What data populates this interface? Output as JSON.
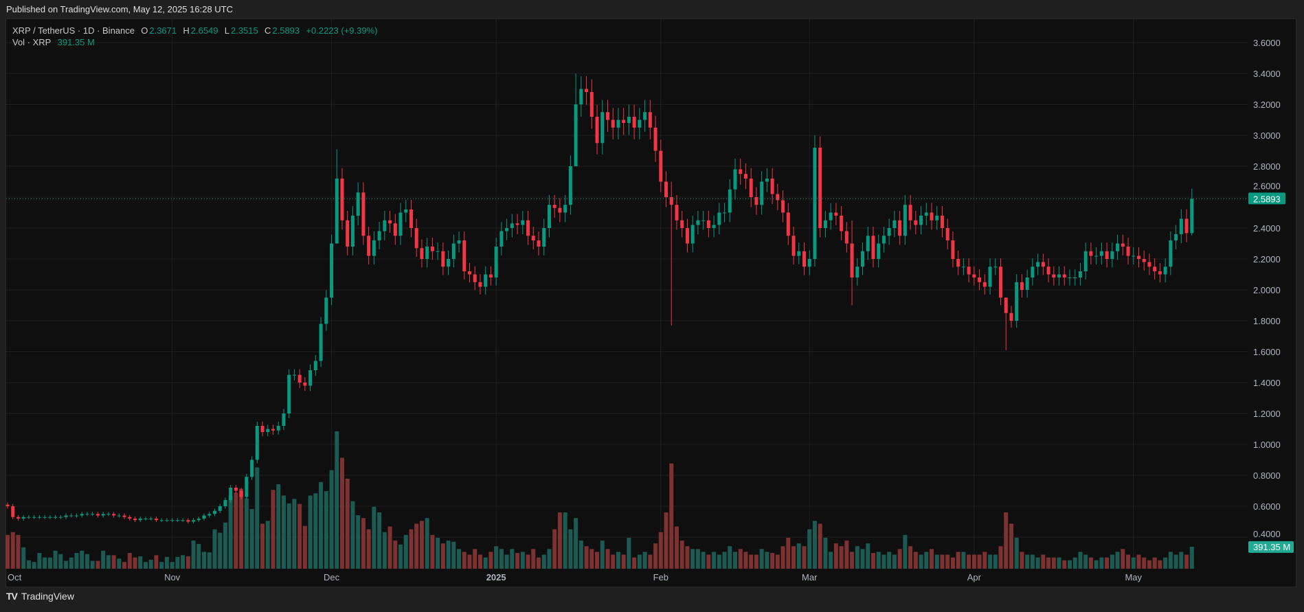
{
  "published": "Published on TradingView.com, May 12, 2025 16:28 UTC",
  "legend": {
    "symbol": "XRP / TetherUS · 1D · Binance",
    "o_label": "O",
    "o": "2.3671",
    "h_label": "H",
    "h": "2.6549",
    "l_label": "L",
    "l": "2.3515",
    "c_label": "C",
    "c": "2.5893",
    "change": "+0.2223 (+9.39%)",
    "vol_label": "Vol · XRP",
    "vol": "391.35 M"
  },
  "footer": {
    "logo": "TradingView"
  },
  "colors": {
    "up": "#089981",
    "down": "#f23645",
    "up_vol": "#1c5b53",
    "down_vol": "#7e3131",
    "bg": "#0f0f0f"
  },
  "chart_data": {
    "type": "candlestick",
    "symbol": "XRP/USDT",
    "interval": "1D",
    "start_date": "2024-10-01",
    "end_date": "2025-05-12",
    "ylim": [
      0.3,
      3.7
    ],
    "y_ticks": [
      "3.6000",
      "3.4000",
      "3.2000",
      "3.0000",
      "2.8000",
      "2.6000",
      "2.4000",
      "2.2000",
      "2.0000",
      "1.8000",
      "1.6000",
      "1.4000",
      "1.2000",
      "1.0000",
      "0.8000",
      "0.6000",
      "0.4000"
    ],
    "x_ticks": [
      {
        "label": "Oct",
        "day": 0
      },
      {
        "label": "Nov",
        "day": 31
      },
      {
        "label": "Dec",
        "day": 61
      },
      {
        "label": "2025",
        "day": 92,
        "bold": true
      },
      {
        "label": "Feb",
        "day": 123
      },
      {
        "label": "Mar",
        "day": 151
      },
      {
        "label": "Apr",
        "day": 182
      },
      {
        "label": "May",
        "day": 212
      }
    ],
    "first_open": 0.61,
    "close": [
      0.6,
      0.53,
      0.52,
      0.53,
      0.53,
      0.53,
      0.53,
      0.53,
      0.53,
      0.53,
      0.53,
      0.54,
      0.54,
      0.54,
      0.55,
      0.55,
      0.55,
      0.54,
      0.55,
      0.55,
      0.54,
      0.54,
      0.53,
      0.52,
      0.51,
      0.52,
      0.52,
      0.52,
      0.51,
      0.51,
      0.51,
      0.51,
      0.51,
      0.51,
      0.5,
      0.51,
      0.52,
      0.54,
      0.55,
      0.57,
      0.6,
      0.64,
      0.72,
      0.7,
      0.66,
      0.79,
      0.9,
      1.12,
      1.08,
      1.1,
      1.09,
      1.12,
      1.2,
      1.45,
      1.45,
      1.4,
      1.38,
      1.48,
      1.54,
      1.78,
      1.95,
      2.3,
      2.72,
      2.45,
      2.28,
      2.48,
      2.63,
      2.35,
      2.22,
      2.32,
      2.38,
      2.45,
      2.43,
      2.35,
      2.5,
      2.52,
      2.4,
      2.27,
      2.2,
      2.28,
      2.25,
      2.25,
      2.15,
      2.2,
      2.3,
      2.32,
      2.12,
      2.1,
      2.05,
      2.02,
      2.1,
      2.08,
      2.28,
      2.38,
      2.4,
      2.43,
      2.42,
      2.45,
      2.35,
      2.32,
      2.28,
      2.4,
      2.55,
      2.53,
      2.5,
      2.55,
      2.8,
      3.2,
      3.3,
      3.28,
      3.12,
      2.95,
      3.15,
      3.1,
      3.05,
      3.1,
      3.08,
      3.12,
      3.05,
      3.1,
      3.15,
      3.05,
      2.9,
      2.7,
      2.6,
      2.55,
      2.45,
      2.4,
      2.3,
      2.42,
      2.45,
      2.45,
      2.4,
      2.42,
      2.5,
      2.5,
      2.65,
      2.78,
      2.75,
      2.72,
      2.6,
      2.55,
      2.7,
      2.72,
      2.62,
      2.58,
      2.5,
      2.35,
      2.22,
      2.25,
      2.15,
      2.2,
      2.92,
      2.4,
      2.45,
      2.5,
      2.48,
      2.38,
      2.3,
      2.08,
      2.15,
      2.25,
      2.35,
      2.2,
      2.3,
      2.35,
      2.4,
      2.45,
      2.35,
      2.55,
      2.45,
      2.42,
      2.48,
      2.5,
      2.45,
      2.48,
      2.4,
      2.32,
      2.2,
      2.15,
      2.15,
      2.1,
      2.08,
      2.05,
      2.02,
      2.15,
      2.15,
      1.95,
      1.85,
      1.8,
      2.05,
      2.0,
      2.08,
      2.15,
      2.18,
      2.15,
      2.1,
      2.08,
      2.1,
      2.08,
      2.08,
      2.08,
      2.12,
      2.25,
      2.22,
      2.22,
      2.25,
      2.2,
      2.25,
      2.3,
      2.28,
      2.22,
      2.22,
      2.2,
      2.18,
      2.15,
      2.12,
      2.1,
      2.15,
      2.32,
      2.36,
      2.46,
      2.3671,
      2.5893
    ],
    "wick_overrides": {
      "62": [
        2.91,
        2.3
      ],
      "107": [
        3.4,
        3.15
      ],
      "125": [
        2.7,
        1.77
      ],
      "152": [
        3.0,
        2.15
      ],
      "188": [
        1.95,
        1.61
      ],
      "159": [
        2.45,
        1.9
      ],
      "223": [
        2.6549,
        2.3515
      ]
    },
    "volume_millions": [
      600,
      650,
      600,
      380,
      150,
      120,
      280,
      200,
      200,
      320,
      260,
      140,
      200,
      280,
      320,
      260,
      140,
      140,
      320,
      240,
      240,
      180,
      120,
      280,
      200,
      220,
      120,
      160,
      240,
      120,
      210,
      120,
      210,
      240,
      220,
      500,
      440,
      300,
      290,
      700,
      640,
      820,
      1300,
      1350,
      1420,
      1250,
      1060,
      1800,
      800,
      850,
      1400,
      1500,
      1300,
      1160,
      1240,
      1150,
      760,
      1300,
      1340,
      1540,
      1380,
      1750,
      2440,
      1970,
      1600,
      1200,
      950,
      900,
      700,
      1100,
      1000,
      650,
      750,
      500,
      430,
      600,
      700,
      800,
      850,
      900,
      600,
      550,
      450,
      500,
      480,
      350,
      300,
      250,
      350,
      250,
      200,
      300,
      400,
      350,
      250,
      350,
      280,
      300,
      250,
      350,
      200,
      250,
      350,
      700,
      1000,
      1000,
      700,
      900,
      500,
      400,
      350,
      300,
      500,
      350,
      250,
      300,
      250,
      550,
      200,
      250,
      300,
      250,
      450,
      650,
      1000,
      1870,
      750,
      500,
      400,
      350,
      350,
      300,
      250,
      300,
      250,
      300,
      400,
      300,
      350,
      300,
      250,
      250,
      350,
      300,
      280,
      250,
      400,
      550,
      400,
      450,
      400,
      700,
      850,
      800,
      550,
      300,
      450,
      400,
      500,
      300,
      400,
      350,
      450,
      280,
      300,
      250,
      300,
      250,
      350,
      600,
      400,
      300,
      250,
      300,
      350,
      250,
      250,
      250,
      200,
      300,
      300,
      250,
      250,
      250,
      300,
      250,
      250,
      400,
      1000,
      800,
      550,
      300,
      250,
      250,
      200,
      250,
      200,
      200,
      200,
      150,
      150,
      200,
      300,
      250,
      200,
      150,
      200,
      200,
      250,
      300,
      350,
      250,
      200,
      250,
      200,
      150,
      200,
      150,
      200,
      300,
      250,
      300,
      250,
      391.35
    ],
    "last_price_label": "2.5893",
    "last_volume_label": "391.35 M"
  }
}
